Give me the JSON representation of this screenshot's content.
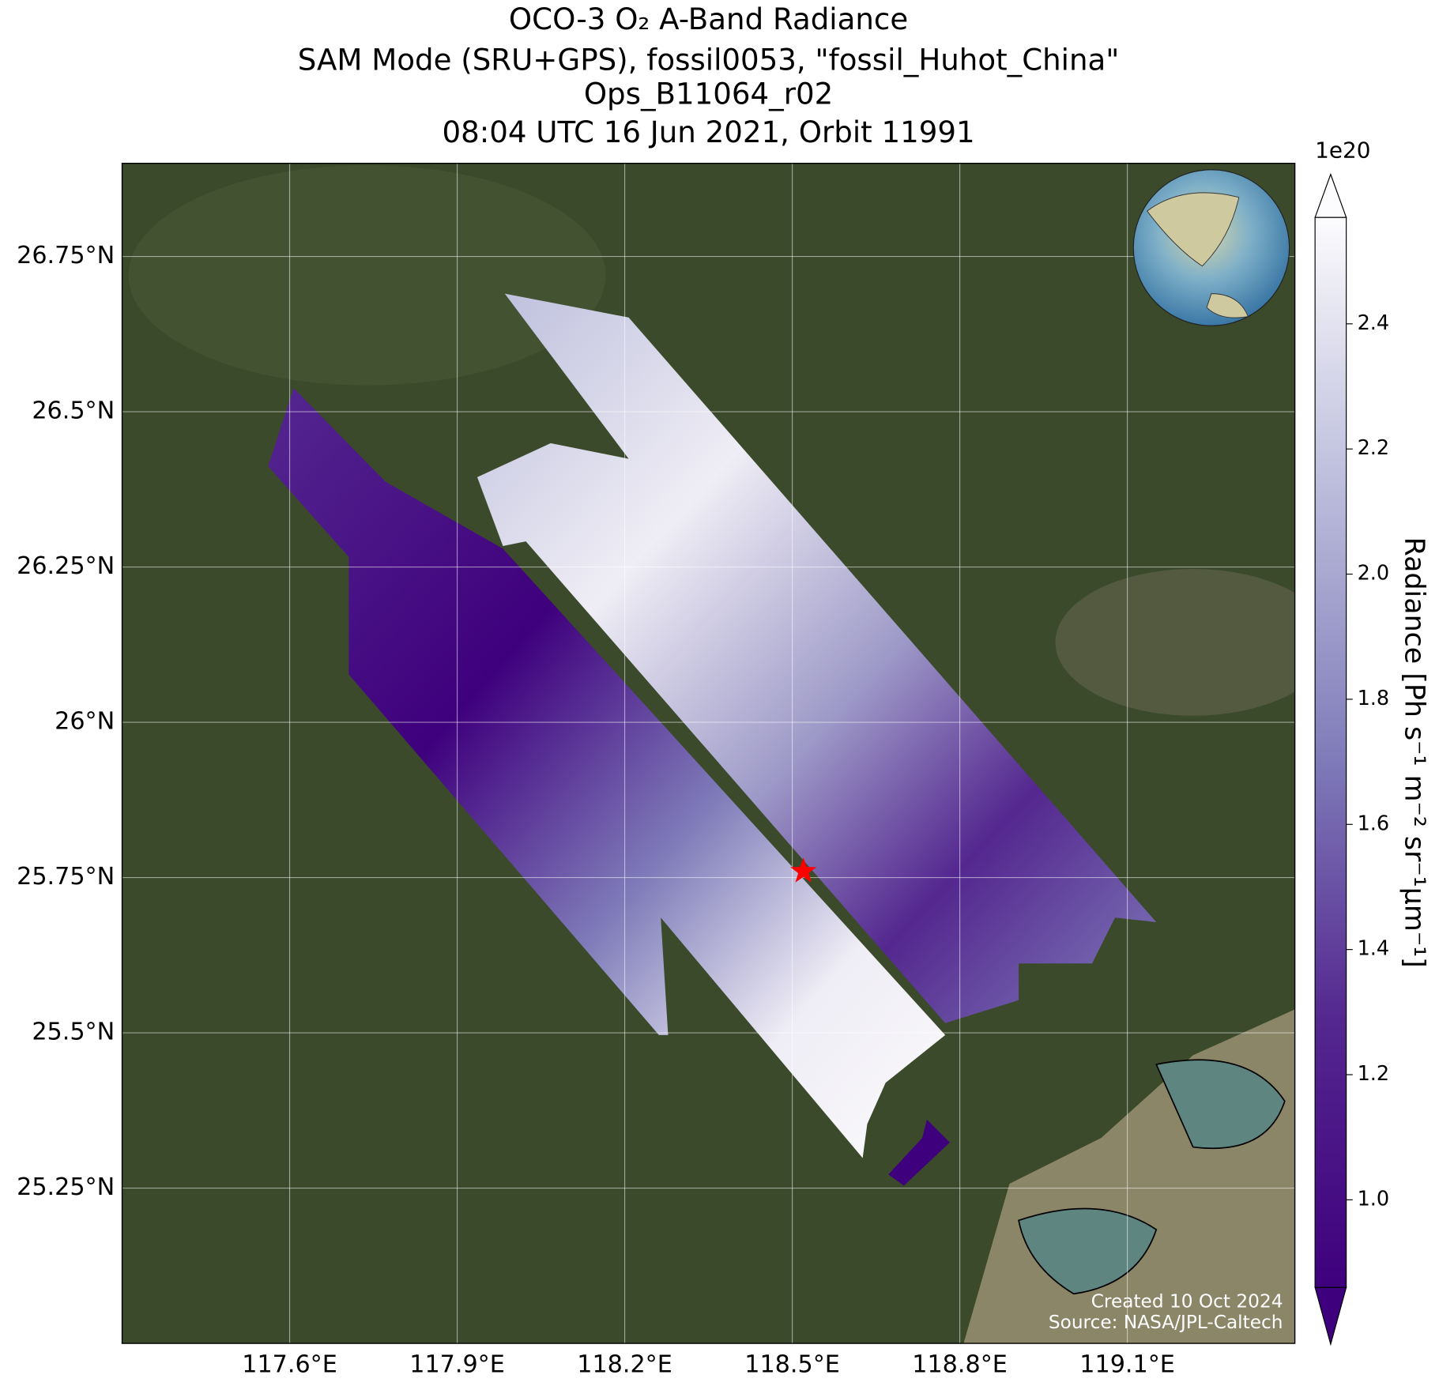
{
  "chart_data": {
    "type": "map",
    "title": [
      "OCO-3 O₂ A-Band Radiance",
      "SAM Mode (SRU+GPS), fossil0053, \"fossil_Huhot_China\"",
      "Ops_B11064_r02",
      "08:04 UTC 16 Jun 2021, Orbit 11991"
    ],
    "xlim": [
      117.3,
      119.4
    ],
    "ylim": [
      25.0,
      26.9
    ],
    "xticks": [
      {
        "value": 117.6,
        "label": "117.6°E"
      },
      {
        "value": 117.9,
        "label": "117.9°E"
      },
      {
        "value": 118.2,
        "label": "118.2°E"
      },
      {
        "value": 118.5,
        "label": "118.5°E"
      },
      {
        "value": 118.8,
        "label": "118.8°E"
      },
      {
        "value": 119.1,
        "label": "119.1°E"
      }
    ],
    "yticks": [
      {
        "value": 25.25,
        "label": "25.25°N"
      },
      {
        "value": 25.5,
        "label": "25.5°N"
      },
      {
        "value": 25.75,
        "label": "25.75°N"
      },
      {
        "value": 26,
        "label": "26°N"
      },
      {
        "value": 26.25,
        "label": "26.25°N"
      },
      {
        "value": 26.5,
        "label": "26.5°N"
      },
      {
        "value": 26.75,
        "label": "26.75°N"
      }
    ],
    "grid": true,
    "site": {
      "lon": 118.52,
      "lat": 25.76,
      "color": "#ff0000"
    },
    "colorbar": {
      "label": "Radiance [Ph s⁻¹ m⁻² sr⁻¹μm⁻¹]",
      "exponent": "1e20",
      "clim": [
        0.86,
        2.57
      ],
      "colors": [
        "#3f007d",
        "#54278f",
        "#807dba",
        "#bcbddc",
        "#fcfbfd"
      ],
      "ticks": [
        {
          "value": 1.0,
          "label": "1.0"
        },
        1.2,
        1.4,
        1.6,
        1.8,
        {
          "value": 2.0,
          "label": "2.0"
        },
        2.2,
        2.4
      ]
    },
    "credits": [
      "Created 10 Oct 2024",
      "Source: NASA/JPL-Caltech"
    ]
  }
}
